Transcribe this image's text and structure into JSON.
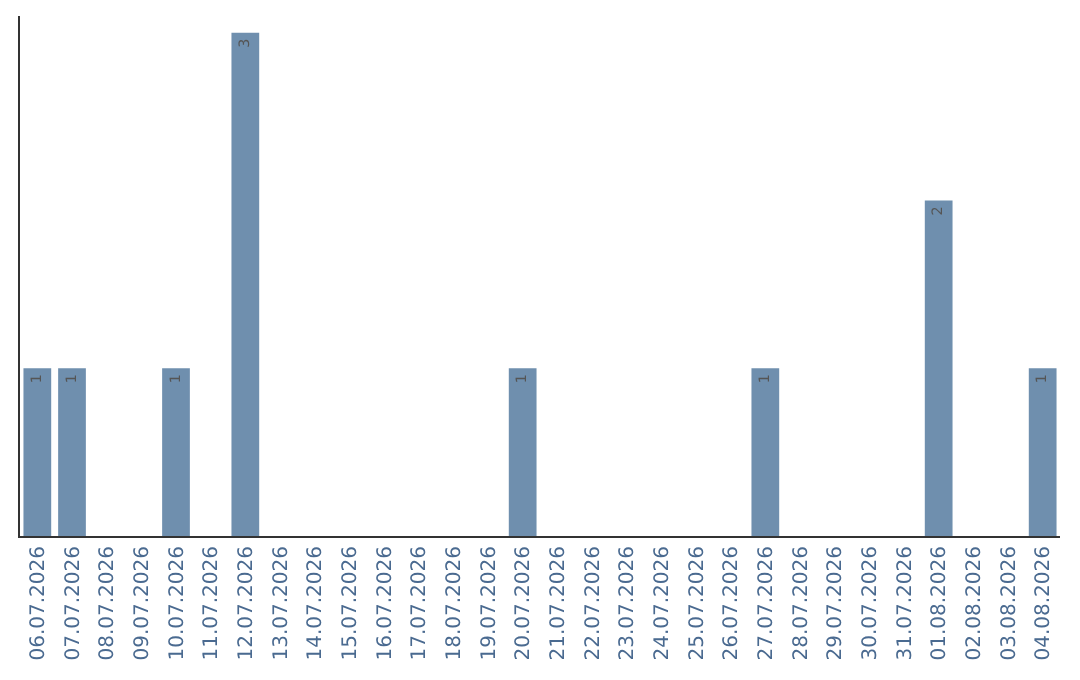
{
  "chart_data": {
    "type": "bar",
    "categories": [
      "06.07.2026",
      "07.07.2026",
      "08.07.2026",
      "09.07.2026",
      "10.07.2026",
      "11.07.2026",
      "12.07.2026",
      "13.07.2026",
      "14.07.2026",
      "15.07.2026",
      "16.07.2026",
      "17.07.2026",
      "18.07.2026",
      "19.07.2026",
      "20.07.2026",
      "21.07.2026",
      "22.07.2026",
      "23.07.2026",
      "24.07.2026",
      "25.07.2026",
      "26.07.2026",
      "27.07.2026",
      "28.07.2026",
      "29.07.2026",
      "30.07.2026",
      "31.07.2026",
      "01.08.2026",
      "02.08.2026",
      "03.08.2026",
      "04.08.2026"
    ],
    "values": [
      1,
      1,
      0,
      0,
      1,
      0,
      3,
      0,
      0,
      0,
      0,
      0,
      0,
      0,
      1,
      0,
      0,
      0,
      0,
      0,
      0,
      1,
      0,
      0,
      0,
      0,
      2,
      0,
      0,
      1
    ],
    "value_labels": [
      "1",
      "1",
      null,
      null,
      "1",
      null,
      "3",
      null,
      null,
      null,
      null,
      null,
      null,
      null,
      "1",
      null,
      null,
      null,
      null,
      null,
      null,
      "1",
      null,
      null,
      null,
      null,
      "2",
      null,
      null,
      "1"
    ],
    "color": "#6f8fae",
    "ylim": [
      0,
      3.1
    ],
    "tick_labels": "x"
  }
}
